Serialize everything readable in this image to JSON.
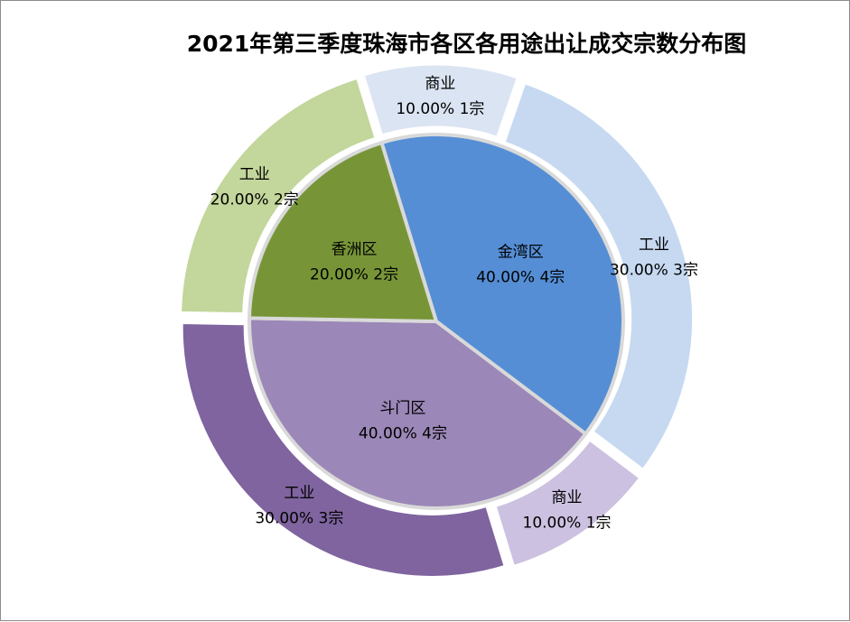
{
  "chart_data": {
    "type": "pie",
    "title": "2021年第三季度珠海市各区各用途出让成交宗数分布图",
    "inner": [
      {
        "name": "金湾区",
        "percent": "40.00%",
        "count": "4宗",
        "value": 4,
        "color": "#558ed5"
      },
      {
        "name": "斗门区",
        "percent": "40.00%",
        "count": "4宗",
        "value": 4,
        "color": "#9b87b8"
      },
      {
        "name": "香洲区",
        "percent": "20.00%",
        "count": "2宗",
        "value": 2,
        "color": "#779537"
      }
    ],
    "outer": [
      {
        "name": "商业",
        "percent": "10.00%",
        "count": "1宗",
        "value": 1,
        "color": "#dbe4f2"
      },
      {
        "name": "工业",
        "percent": "30.00%",
        "count": "3宗",
        "value": 3,
        "color": "#c6d9f1"
      },
      {
        "name": "商业",
        "percent": "10.00%",
        "count": "1宗",
        "value": 1,
        "color": "#ccc1e0"
      },
      {
        "name": "工业",
        "percent": "30.00%",
        "count": "3宗",
        "value": 3,
        "color": "#7f649f"
      },
      {
        "name": "工业",
        "percent": "20.00%",
        "count": "2宗",
        "value": 2,
        "color": "#c3d69b"
      }
    ]
  }
}
